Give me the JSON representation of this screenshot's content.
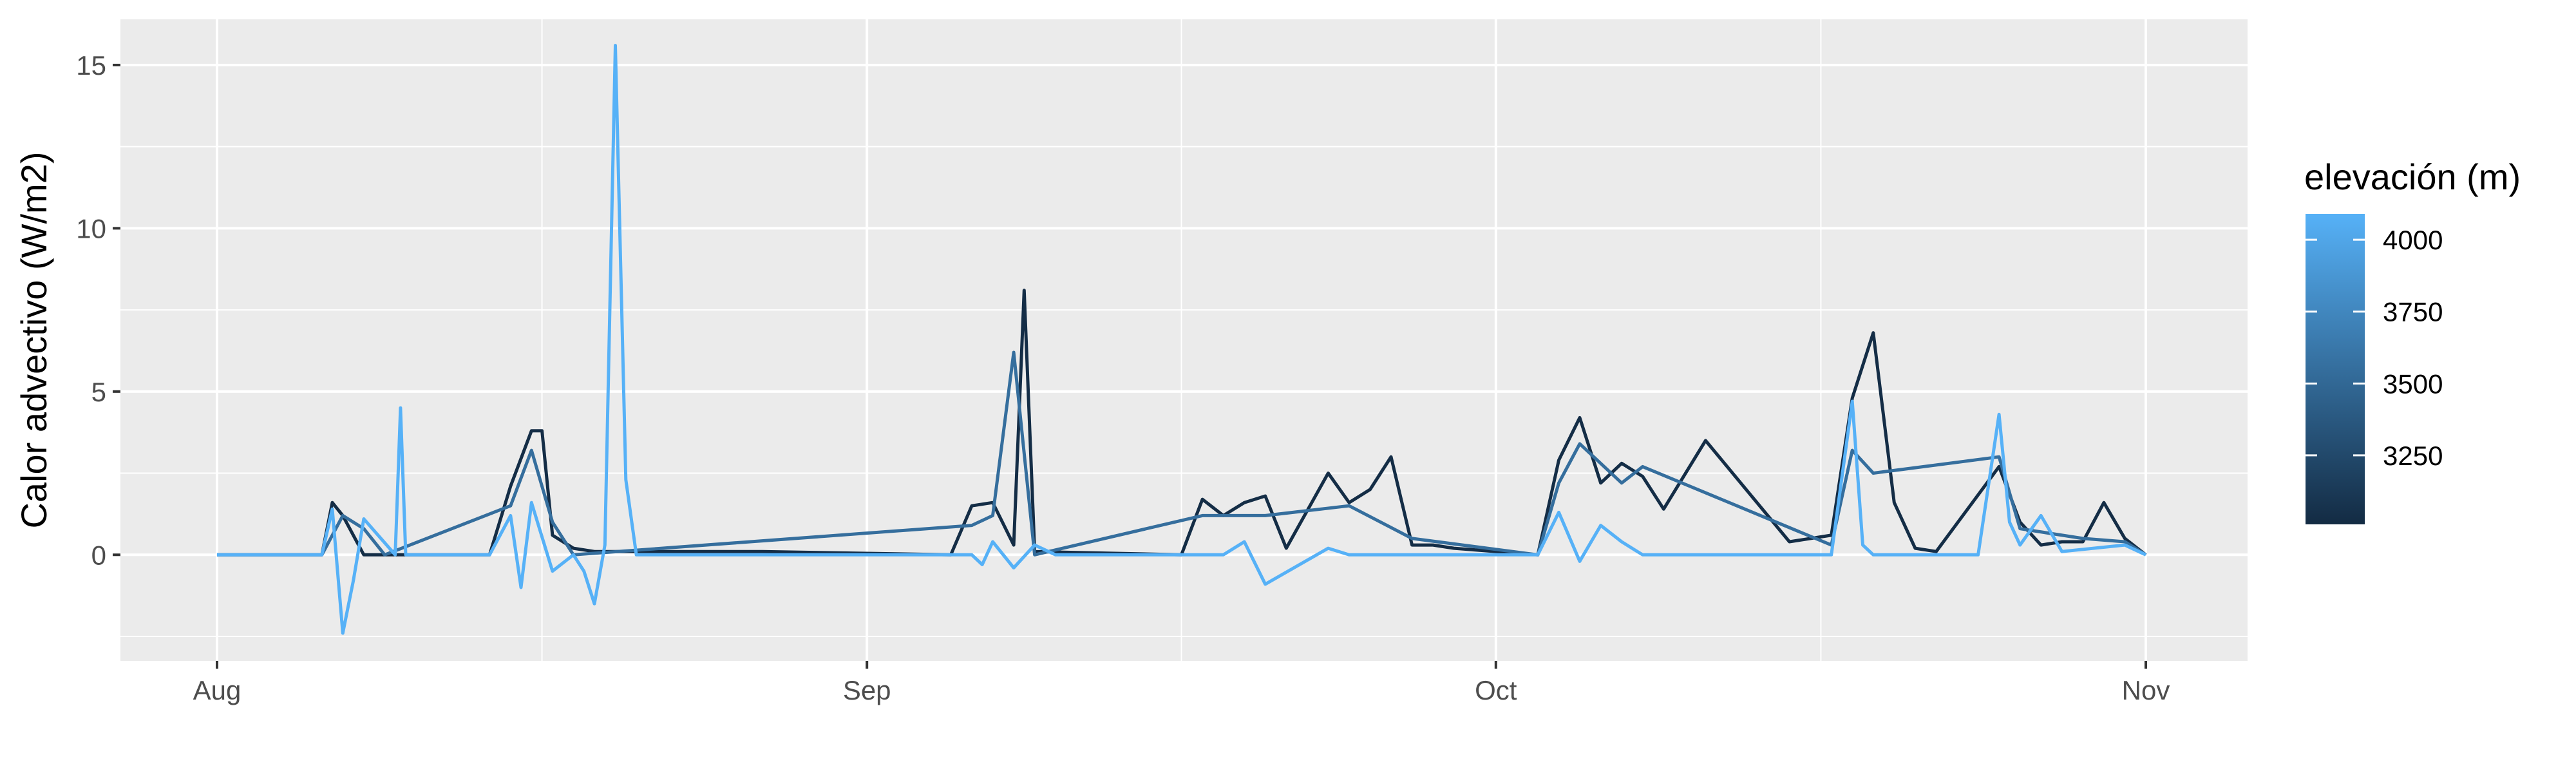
{
  "chart_data": {
    "type": "line",
    "title": "",
    "xlabel": "",
    "ylabel": "Calor advectivo (W/m2)",
    "x_range": [
      "2021-08-01",
      "2021-11-01"
    ],
    "ylim": [
      -3.25,
      16.4
    ],
    "x_ticks": [
      {
        "label": "Aug",
        "date": "2021-08-01"
      },
      {
        "label": "Sep",
        "date": "2021-09-01"
      },
      {
        "label": "Oct",
        "date": "2021-10-01"
      },
      {
        "label": "Nov",
        "date": "2021-11-01"
      }
    ],
    "y_ticks": [
      0,
      5,
      10,
      15
    ],
    "grid": true,
    "legend": {
      "title": "elevación (m)",
      "type": "colorbar",
      "placement": "right",
      "breaks": [
        4000,
        3750,
        3500,
        3250
      ],
      "range": [
        3010,
        4090
      ],
      "low_color": "#132b43",
      "high_color": "#56b1f7"
    },
    "series": [
      {
        "elevation": 4090,
        "x": [
          "2021-08-01",
          "2021-08-06",
          "2021-08-06T12:00",
          "2021-08-07",
          "2021-08-07T12:00",
          "2021-08-08",
          "2021-08-09T12:00",
          "2021-08-09T18:00",
          "2021-08-10",
          "2021-08-14",
          "2021-08-15",
          "2021-08-15T12:00",
          "2021-08-16",
          "2021-08-17",
          "2021-08-18",
          "2021-08-18T12:00",
          "2021-08-19",
          "2021-08-19T12:00",
          "2021-08-20",
          "2021-08-20T12:00",
          "2021-08-21",
          "2021-09-06",
          "2021-09-06T12:00",
          "2021-09-07",
          "2021-09-08",
          "2021-09-09",
          "2021-09-10",
          "2021-09-18",
          "2021-09-19",
          "2021-09-20",
          "2021-09-23",
          "2021-09-24",
          "2021-10-03",
          "2021-10-04",
          "2021-10-05",
          "2021-10-06",
          "2021-10-07",
          "2021-10-08",
          "2021-10-17",
          "2021-10-18",
          "2021-10-18T12:00",
          "2021-10-19",
          "2021-10-24",
          "2021-10-25",
          "2021-10-25T12:00",
          "2021-10-26",
          "2021-10-27",
          "2021-10-28",
          "2021-10-31",
          "2021-11-01"
        ],
        "y": [
          0,
          0,
          1.4,
          -2.4,
          -0.8,
          1.1,
          0,
          4.5,
          0,
          0,
          1.2,
          -1.0,
          1.6,
          -0.5,
          0,
          -0.5,
          -1.5,
          0.3,
          15.6,
          2.3,
          0,
          0,
          -0.3,
          0.4,
          -0.4,
          0.3,
          0,
          0,
          0.4,
          -0.9,
          0.2,
          0,
          0,
          1.3,
          -0.2,
          0.9,
          0.4,
          0,
          0,
          4.7,
          0.3,
          0,
          0,
          4.3,
          1.0,
          0.3,
          1.2,
          0.1,
          0.3,
          0
        ]
      },
      {
        "elevation": 3030,
        "x": [
          "2021-08-01",
          "2021-08-06",
          "2021-08-06T12:00",
          "2021-08-07",
          "2021-08-08",
          "2021-08-14",
          "2021-08-15",
          "2021-08-16",
          "2021-08-16T12:00",
          "2021-08-17",
          "2021-08-18",
          "2021-08-19",
          "2021-08-27",
          "2021-09-05",
          "2021-09-06",
          "2021-09-07",
          "2021-09-08",
          "2021-09-08T12:00",
          "2021-09-09",
          "2021-09-16",
          "2021-09-17",
          "2021-09-18",
          "2021-09-19",
          "2021-09-20",
          "2021-09-21",
          "2021-09-23",
          "2021-09-24",
          "2021-09-25",
          "2021-09-26",
          "2021-09-27",
          "2021-09-28",
          "2021-09-29",
          "2021-10-03",
          "2021-10-04",
          "2021-10-05",
          "2021-10-06",
          "2021-10-07",
          "2021-10-08",
          "2021-10-09",
          "2021-10-11",
          "2021-10-15",
          "2021-10-17",
          "2021-10-18",
          "2021-10-19",
          "2021-10-20",
          "2021-10-21",
          "2021-10-22",
          "2021-10-25",
          "2021-10-26",
          "2021-10-27",
          "2021-10-28",
          "2021-10-29",
          "2021-10-30",
          "2021-10-31",
          "2021-11-01"
        ],
        "y": [
          0,
          0,
          1.6,
          1.2,
          0,
          0,
          2.1,
          3.8,
          3.8,
          0.6,
          0.2,
          0.1,
          0.1,
          0,
          1.5,
          1.6,
          0.3,
          8.1,
          0.1,
          0,
          1.7,
          1.2,
          1.6,
          1.8,
          0.2,
          2.5,
          1.6,
          2.0,
          3.0,
          0.3,
          0.3,
          0.2,
          0,
          2.9,
          4.2,
          2.2,
          2.8,
          2.4,
          1.4,
          3.5,
          0.4,
          0.6,
          4.8,
          6.8,
          1.6,
          0.2,
          0.1,
          2.7,
          1.0,
          0.3,
          0.4,
          0.4,
          1.6,
          0.5,
          0
        ]
      },
      {
        "elevation": 3550,
        "x": [
          "2021-08-01",
          "2021-08-06",
          "2021-08-07",
          "2021-08-08",
          "2021-08-09",
          "2021-08-15",
          "2021-08-16",
          "2021-08-17",
          "2021-08-18",
          "2021-09-06",
          "2021-09-07",
          "2021-09-08",
          "2021-09-09",
          "2021-09-17",
          "2021-09-20",
          "2021-09-24",
          "2021-09-27",
          "2021-10-03",
          "2021-10-04",
          "2021-10-05",
          "2021-10-07",
          "2021-10-08",
          "2021-10-17",
          "2021-10-18",
          "2021-10-19",
          "2021-10-25",
          "2021-10-26",
          "2021-10-29",
          "2021-10-31",
          "2021-11-01"
        ],
        "y": [
          0,
          0,
          1.2,
          0.8,
          0,
          1.5,
          3.2,
          1.0,
          0,
          0.9,
          1.2,
          6.2,
          0,
          1.2,
          1.2,
          1.5,
          0.5,
          0,
          2.2,
          3.4,
          2.2,
          2.7,
          0.3,
          3.2,
          2.5,
          3.0,
          0.8,
          0.5,
          0.4,
          0
        ]
      }
    ]
  }
}
